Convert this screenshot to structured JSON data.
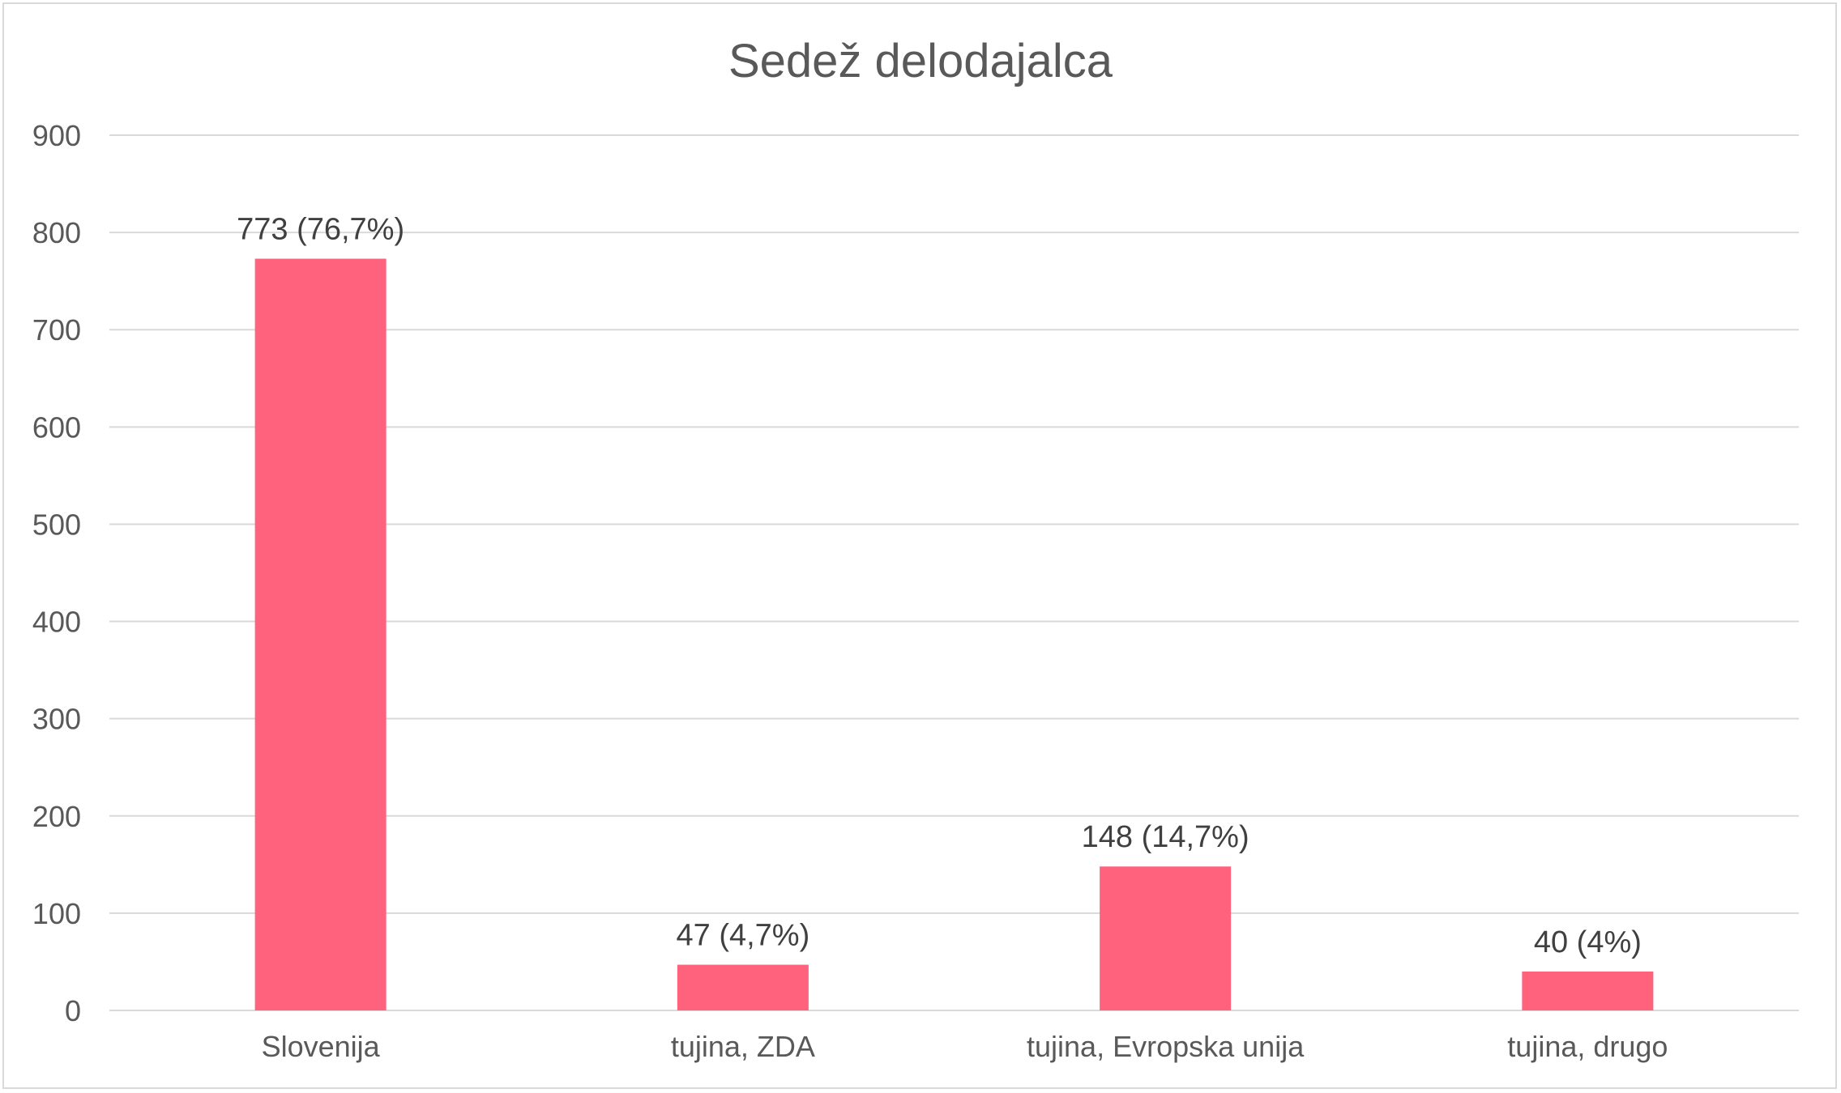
{
  "chart_data": {
    "type": "bar",
    "title": "Sedež delodajalca",
    "xlabel": "",
    "ylabel": "",
    "categories": [
      "Slovenija",
      "tujina, ZDA",
      "tujina, Evropska unija",
      "tujina, drugo"
    ],
    "values": [
      773,
      47,
      148,
      40
    ],
    "data_labels": [
      "773 (76,7%)",
      "47 (4,7%)",
      "148 (14,7%)",
      "40 (4%)"
    ],
    "ylim": [
      0,
      900
    ],
    "yticks": [
      0,
      100,
      200,
      300,
      400,
      500,
      600,
      700,
      800,
      900
    ],
    "grid": true,
    "legend": "none",
    "colors": {
      "bar": "#ff627d",
      "grid": "#d9d9d9",
      "text": "#595959",
      "data_label": "#404040"
    }
  }
}
